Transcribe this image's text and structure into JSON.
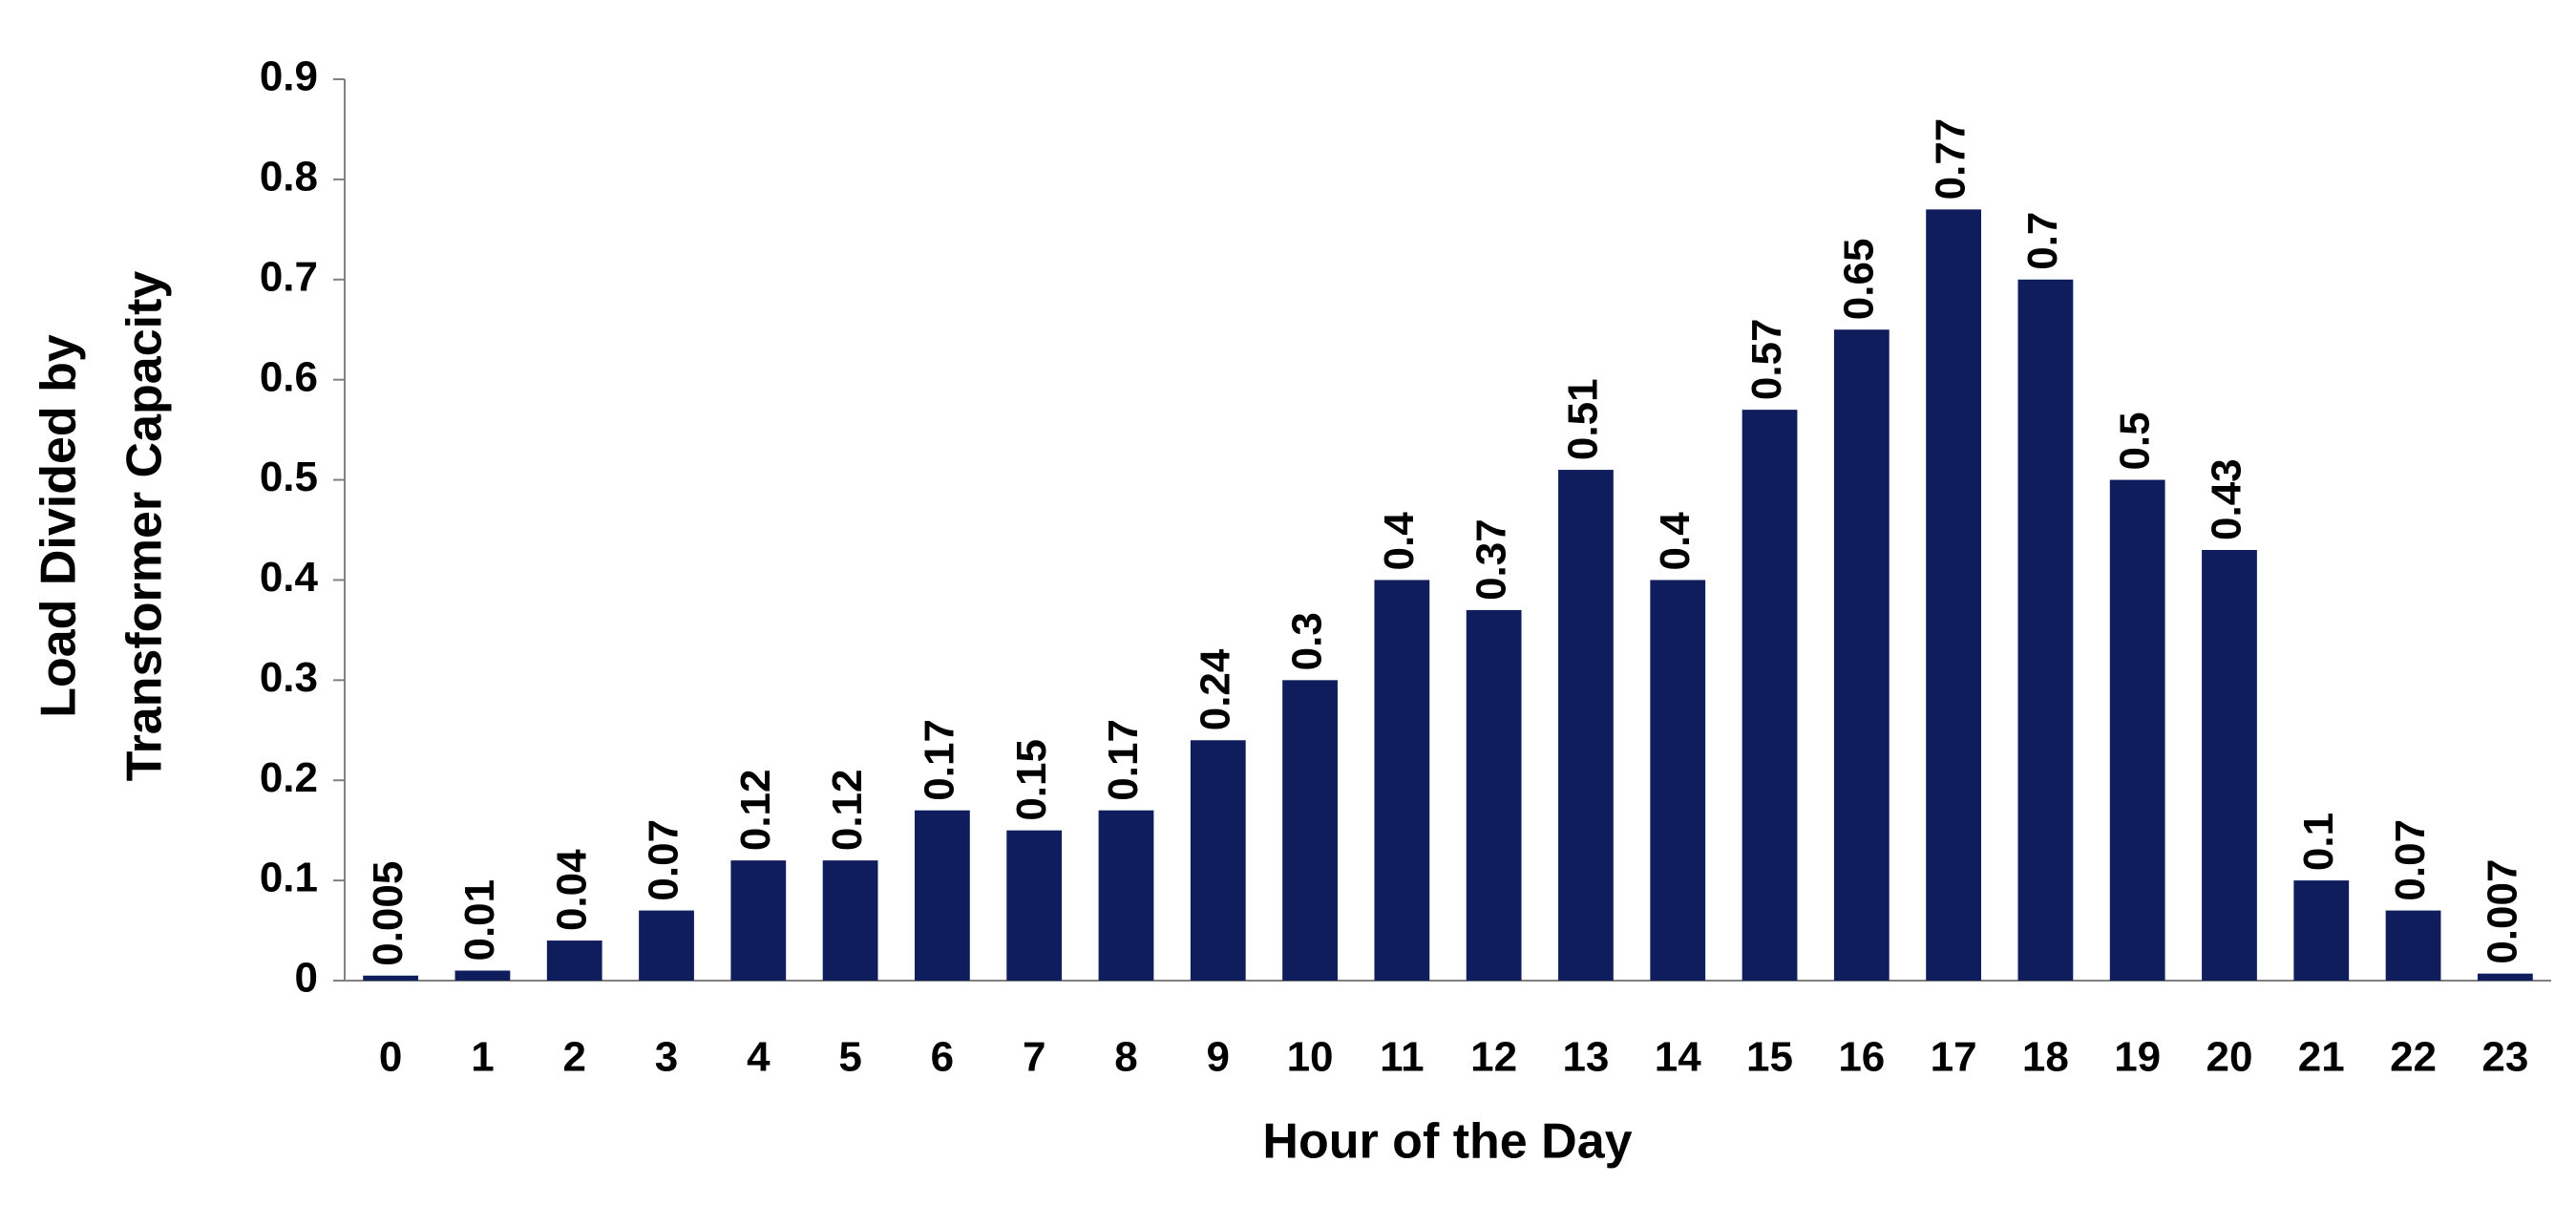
{
  "chart_data": {
    "type": "bar",
    "xlabel": "Hour of the Day",
    "ylabel": [
      "Load Divided by",
      "Transformer Capacity"
    ],
    "categories": [
      0,
      1,
      2,
      3,
      4,
      5,
      6,
      7,
      8,
      9,
      10,
      11,
      12,
      13,
      14,
      15,
      16,
      17,
      18,
      19,
      20,
      21,
      22,
      23
    ],
    "values": [
      0.005,
      0.01,
      0.04,
      0.07,
      0.12,
      0.12,
      0.17,
      0.15,
      0.17,
      0.24,
      0.3,
      0.4,
      0.37,
      0.51,
      0.4,
      0.57,
      0.65,
      0.77,
      0.7,
      0.5,
      0.43,
      0.1,
      0.07,
      0.007
    ],
    "color": "#0f1d5c",
    "ylim": [
      0,
      0.9
    ],
    "yticks": [
      0,
      0.1,
      0.2,
      0.3,
      0.4,
      0.5,
      0.6,
      0.7,
      0.8,
      0.9
    ],
    "grid": false
  }
}
